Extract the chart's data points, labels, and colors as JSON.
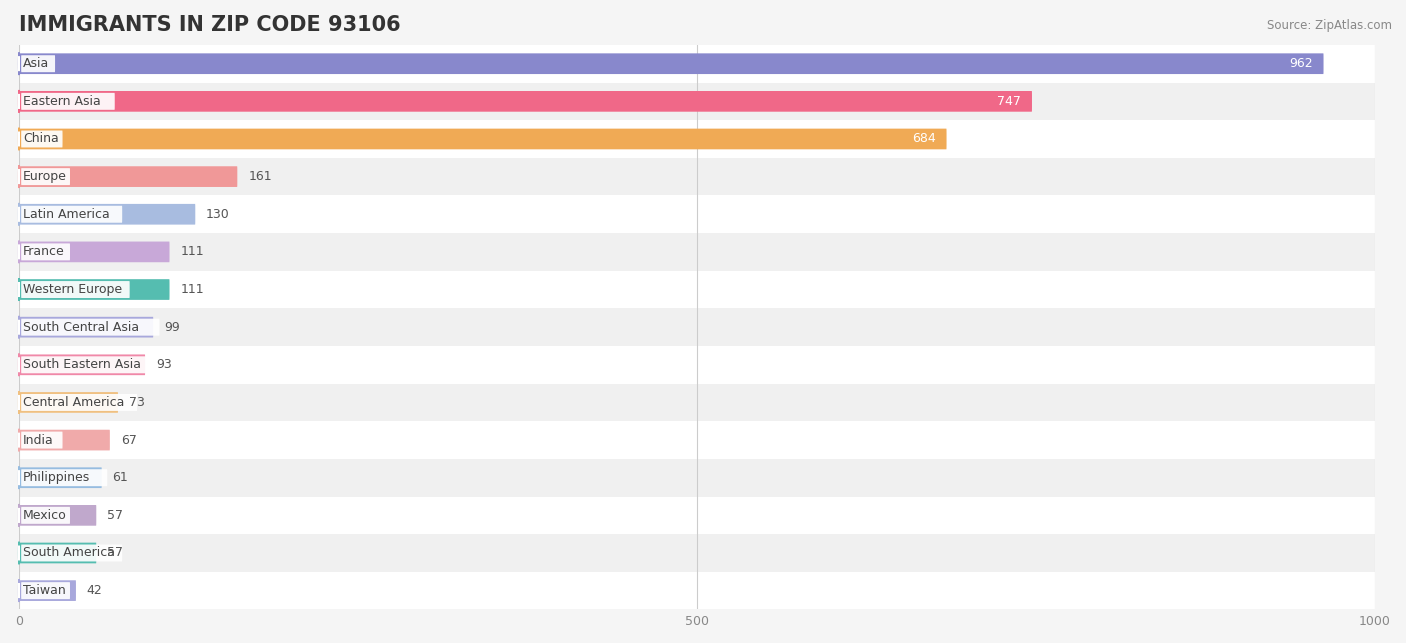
{
  "title": "IMMIGRANTS IN ZIP CODE 93106",
  "source": "Source: ZipAtlas.com",
  "categories": [
    "Asia",
    "Eastern Asia",
    "China",
    "Europe",
    "Latin America",
    "France",
    "Western Europe",
    "South Central Asia",
    "South Eastern Asia",
    "Central America",
    "India",
    "Philippines",
    "Mexico",
    "South America",
    "Taiwan"
  ],
  "values": [
    962,
    747,
    684,
    161,
    130,
    111,
    111,
    99,
    93,
    73,
    67,
    61,
    57,
    57,
    42
  ],
  "bar_colors": [
    "#8888cc",
    "#f06888",
    "#f0aa55",
    "#f09898",
    "#a8bce0",
    "#c8a8d8",
    "#55bdb0",
    "#a8a8dc",
    "#f088a8",
    "#f0c080",
    "#f0aaaa",
    "#96bce0",
    "#c0a8cc",
    "#55bdb0",
    "#a8a8dc"
  ],
  "bg_color": "#f5f5f5",
  "row_even_color": "#ffffff",
  "row_odd_color": "#f0f0f0",
  "xlim_max": 1000,
  "xticks": [
    0,
    500,
    1000
  ],
  "title_fontsize": 15,
  "label_fontsize": 9,
  "value_fontsize": 9
}
